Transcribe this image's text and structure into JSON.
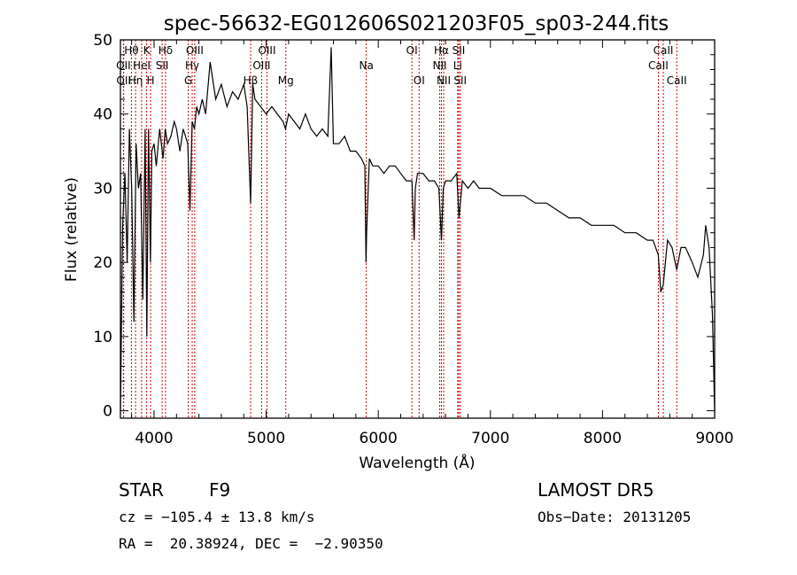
{
  "chart_data": {
    "type": "line",
    "title": "spec-56632-EG012606S021203F05_sp03-244.fits",
    "xlabel": "Wavelength (Å)",
    "ylabel": "Flux (relative)",
    "xlim": [
      3700,
      9000
    ],
    "ylim": [
      -1,
      50
    ],
    "x_ticks": [
      4000,
      5000,
      6000,
      7000,
      8000,
      9000
    ],
    "y_ticks": [
      0,
      10,
      20,
      30,
      40,
      50
    ],
    "grid": false,
    "series": [
      {
        "x": [
          3700,
          3720,
          3740,
          3760,
          3780,
          3800,
          3820,
          3840,
          3860,
          3880,
          3900,
          3920,
          3935,
          3950,
          3968,
          3980,
          4000,
          4020,
          4050,
          4080,
          4100,
          4120,
          4150,
          4180,
          4200,
          4230,
          4260,
          4300,
          4320,
          4340,
          4360,
          4380,
          4400,
          4430,
          4460,
          4500,
          4550,
          4600,
          4650,
          4700,
          4750,
          4800,
          4830,
          4861,
          4880,
          4900,
          4950,
          5000,
          5050,
          5100,
          5150,
          5172,
          5200,
          5250,
          5300,
          5350,
          5400,
          5450,
          5500,
          5550,
          5580,
          5600,
          5650,
          5700,
          5750,
          5800,
          5850,
          5880,
          5890,
          5896,
          5920,
          5950,
          6000,
          6050,
          6100,
          6150,
          6200,
          6250,
          6300,
          6320,
          6330,
          6350,
          6400,
          6450,
          6500,
          6540,
          6563,
          6580,
          6600,
          6650,
          6700,
          6720,
          6750,
          6800,
          6850,
          6900,
          6950,
          7000,
          7100,
          7200,
          7300,
          7400,
          7500,
          7600,
          7700,
          7800,
          7900,
          8000,
          8100,
          8200,
          8300,
          8400,
          8450,
          8498,
          8520,
          8542,
          8580,
          8620,
          8662,
          8700,
          8740,
          8800,
          8850,
          8900,
          8920,
          8950,
          8980,
          9000
        ],
        "y": [
          0,
          25,
          32,
          20,
          38,
          30,
          12,
          36,
          30,
          32,
          15,
          38,
          10,
          38,
          20,
          35,
          36,
          33,
          38,
          34,
          38,
          36,
          37,
          39,
          38,
          35,
          38,
          36,
          27,
          39,
          38,
          41,
          40,
          42,
          40,
          47,
          42,
          44,
          41,
          43,
          42,
          44,
          41,
          28,
          44,
          42,
          41,
          40,
          41,
          40,
          39,
          38,
          40,
          39,
          38,
          40,
          38,
          37,
          38,
          37,
          49,
          36,
          36,
          37,
          35,
          35,
          34,
          33,
          20,
          24,
          34,
          33,
          33,
          32,
          33,
          33,
          32,
          31,
          31,
          23,
          30,
          32,
          32,
          31,
          31,
          30,
          23,
          30,
          31,
          31,
          32,
          26,
          31,
          30,
          31,
          30,
          30,
          30,
          29,
          29,
          29,
          28,
          28,
          27,
          26,
          26,
          25,
          25,
          25,
          24,
          24,
          23,
          23,
          21,
          16,
          17,
          23,
          22,
          19,
          22,
          22,
          20,
          18,
          21,
          25,
          22,
          13,
          0
        ]
      }
    ],
    "line_markers": [
      {
        "label": "Hθ",
        "wl": 3798,
        "row": 0
      },
      {
        "label": "OII",
        "wl": 3727,
        "row": 1
      },
      {
        "label": "OII",
        "wl": 3729,
        "row": 2
      },
      {
        "label": "HeI",
        "wl": 3889,
        "row": 1
      },
      {
        "label": "Hη",
        "wl": 3835,
        "row": 2
      },
      {
        "label": "K",
        "wl": 3934,
        "row": 0
      },
      {
        "label": "H",
        "wl": 3969,
        "row": 2
      },
      {
        "label": "Hδ",
        "wl": 4102,
        "row": 0
      },
      {
        "label": "SII",
        "wl": 4072,
        "row": 1
      },
      {
        "label": "OIII",
        "wl": 4363,
        "row": 0
      },
      {
        "label": "Hγ",
        "wl": 4340,
        "row": 1
      },
      {
        "label": "G",
        "wl": 4305,
        "row": 2
      },
      {
        "label": "OIII",
        "wl": 5007,
        "row": 0
      },
      {
        "label": "OIII",
        "wl": 4959,
        "row": 1
      },
      {
        "label": "Hβ",
        "wl": 4861,
        "row": 2
      },
      {
        "label": "Mg",
        "wl": 5175,
        "row": 2
      },
      {
        "label": "Na",
        "wl": 5893,
        "row": 1
      },
      {
        "label": "OI",
        "wl": 6300,
        "row": 0
      },
      {
        "label": "OI",
        "wl": 6364,
        "row": 2
      },
      {
        "label": "Hα",
        "wl": 6563,
        "row": 0
      },
      {
        "label": "NII",
        "wl": 6548,
        "row": 1
      },
      {
        "label": "NII",
        "wl": 6583,
        "row": 2
      },
      {
        "label": "SII",
        "wl": 6717,
        "row": 0
      },
      {
        "label": "Li",
        "wl": 6708,
        "row": 1
      },
      {
        "label": "SII",
        "wl": 6731,
        "row": 2
      },
      {
        "label": "CaII",
        "wl": 8542,
        "row": 0
      },
      {
        "label": "CaII",
        "wl": 8498,
        "row": 1
      },
      {
        "label": "CaII",
        "wl": 8662,
        "row": 2
      }
    ],
    "marker_color": "#cc0000",
    "line_color": "#000000"
  },
  "info": {
    "class_label": "STAR",
    "subclass": "F9",
    "survey": "LAMOST DR5",
    "cz": "cz = −105.4 ± 13.8 km/s",
    "obs_date": "Obs−Date: 20131205",
    "coords": "RA =  20.38924, DEC =  −2.90350"
  }
}
